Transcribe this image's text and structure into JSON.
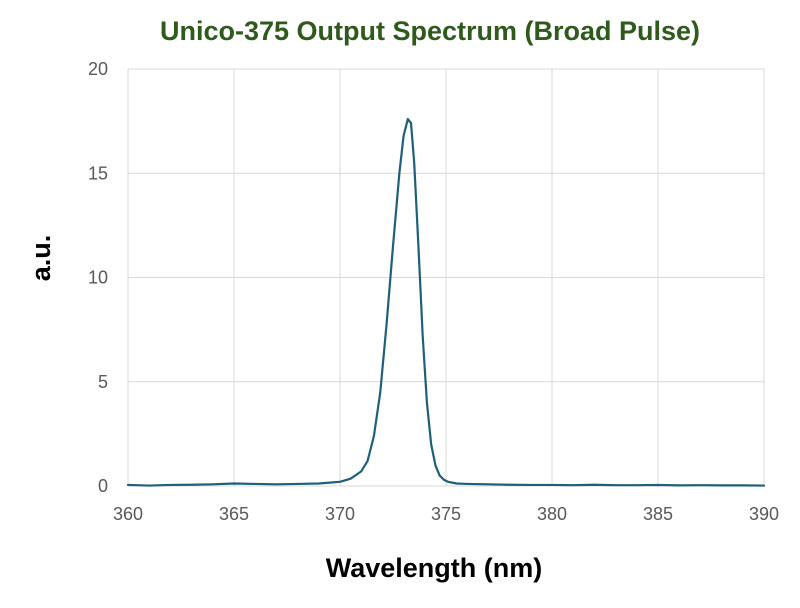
{
  "chart_data": {
    "type": "line",
    "title": "Unico-375 Output Spectrum (Broad Pulse)",
    "xlabel": "Wavelength (nm)",
    "ylabel": "a.u.",
    "xlim": [
      360,
      390
    ],
    "ylim": [
      0,
      20
    ],
    "x_ticks": [
      "360",
      "365",
      "370",
      "375",
      "380",
      "385",
      "390"
    ],
    "y_ticks": [
      "0",
      "5",
      "10",
      "15",
      "20"
    ],
    "grid": true,
    "legend": "none",
    "series_color": "#1f5f7a",
    "series": [
      {
        "x": [
          360,
          361,
          362,
          363,
          364,
          365,
          366,
          367,
          368,
          369,
          370,
          370.5,
          371,
          371.3,
          371.6,
          371.9,
          372.2,
          372.5,
          372.8,
          373.0,
          373.2,
          373.35,
          373.5,
          373.7,
          373.9,
          374.1,
          374.3,
          374.5,
          374.7,
          374.9,
          375.1,
          375.5,
          376,
          377,
          378,
          379,
          380,
          381,
          382,
          383,
          384,
          385,
          386,
          387,
          388,
          389,
          390
        ],
        "y": [
          0.05,
          0.02,
          0.05,
          0.06,
          0.08,
          0.12,
          0.1,
          0.08,
          0.1,
          0.12,
          0.2,
          0.35,
          0.7,
          1.2,
          2.4,
          4.5,
          7.8,
          11.5,
          15.0,
          16.8,
          17.6,
          17.4,
          15.5,
          11.5,
          7.2,
          4.0,
          2.0,
          1.0,
          0.5,
          0.3,
          0.2,
          0.12,
          0.1,
          0.08,
          0.06,
          0.05,
          0.05,
          0.04,
          0.06,
          0.04,
          0.04,
          0.05,
          0.03,
          0.04,
          0.03,
          0.03,
          0.02
        ]
      }
    ]
  }
}
